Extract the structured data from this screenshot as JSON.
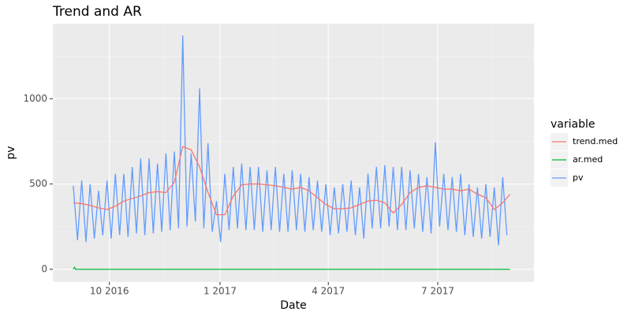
{
  "chart_data": {
    "type": "line",
    "title": "Trend and AR",
    "x_label": "Date",
    "y_label": "pv",
    "legend_title": "variable",
    "legend": "right",
    "grid": true,
    "xlim": [
      -17,
      383
    ],
    "xticks": [
      {
        "value": 30,
        "label": "10 2016"
      },
      {
        "value": 122,
        "label": "1 2017"
      },
      {
        "value": 212,
        "label": "4 2017"
      },
      {
        "value": 303,
        "label": "7 2017"
      }
    ],
    "ylim": [
      -74,
      1440
    ],
    "yticks": [
      0,
      500,
      1000
    ],
    "series": [
      {
        "name": "trend.med",
        "color": "#F8766D",
        "x": [
          0,
          7,
          14,
          21,
          28,
          35,
          42,
          49,
          56,
          63,
          70,
          77,
          84,
          91,
          98,
          105,
          112,
          119,
          126,
          133,
          140,
          147,
          154,
          161,
          168,
          175,
          182,
          189,
          196,
          203,
          210,
          217,
          224,
          231,
          238,
          245,
          252,
          259,
          266,
          273,
          280,
          287,
          294,
          301,
          308,
          315,
          322,
          329,
          336,
          343,
          350,
          357,
          363
        ],
        "values": [
          390,
          385,
          375,
          360,
          350,
          370,
          400,
          415,
          430,
          450,
          455,
          450,
          510,
          720,
          700,
          600,
          450,
          320,
          320,
          430,
          495,
          500,
          500,
          495,
          490,
          480,
          470,
          480,
          460,
          420,
          380,
          355,
          355,
          360,
          380,
          400,
          405,
          390,
          330,
          380,
          450,
          480,
          490,
          480,
          470,
          470,
          460,
          470,
          440,
          420,
          350,
          390,
          440
        ]
      },
      {
        "name": "ar.med",
        "color": "#00BA38",
        "x": [
          0,
          1,
          2,
          363
        ],
        "values": [
          0,
          12,
          0,
          0
        ]
      },
      {
        "name": "pv",
        "color": "#619CFF",
        "x": [
          0,
          3.5,
          7,
          10.5,
          14,
          17.5,
          21,
          24.5,
          28,
          31.5,
          35,
          38.5,
          42,
          45.5,
          49,
          52.5,
          56,
          59.5,
          63,
          66.5,
          70,
          73.5,
          77,
          80.5,
          84,
          87.5,
          91,
          94.5,
          98,
          101.5,
          105,
          108.5,
          112,
          115.5,
          119,
          122.5,
          126,
          129.5,
          133,
          136.5,
          140,
          143.5,
          147,
          150.5,
          154,
          157.5,
          161,
          164.5,
          168,
          171.5,
          175,
          178.5,
          182,
          185.5,
          189,
          192.5,
          196,
          199.5,
          203,
          206.5,
          210,
          213.5,
          217,
          220.5,
          224,
          227.5,
          231,
          234.5,
          238,
          241.5,
          245,
          248.5,
          252,
          255.5,
          259,
          262.5,
          266,
          269.5,
          273,
          276.5,
          280,
          283.5,
          287,
          290.5,
          294,
          297.5,
          301,
          304.5,
          308,
          311.5,
          315,
          318.5,
          322,
          325.5,
          329,
          332.5,
          336,
          339.5,
          343,
          346.5,
          350,
          353.5,
          357,
          360.5
        ],
        "values": [
          490,
          170,
          520,
          160,
          500,
          180,
          460,
          200,
          520,
          180,
          560,
          200,
          560,
          190,
          600,
          210,
          650,
          200,
          650,
          210,
          620,
          220,
          680,
          230,
          690,
          240,
          1370,
          250,
          680,
          280,
          1060,
          240,
          740,
          220,
          400,
          160,
          560,
          230,
          600,
          240,
          620,
          230,
          600,
          230,
          600,
          220,
          580,
          230,
          600,
          220,
          560,
          220,
          580,
          230,
          560,
          220,
          540,
          230,
          520,
          220,
          500,
          200,
          480,
          210,
          500,
          220,
          520,
          200,
          480,
          180,
          560,
          240,
          600,
          240,
          610,
          250,
          600,
          230,
          600,
          230,
          580,
          240,
          560,
          220,
          540,
          210,
          745,
          250,
          560,
          230,
          540,
          220,
          560,
          200,
          500,
          190,
          480,
          180,
          500,
          190,
          480,
          140,
          540,
          200
        ]
      }
    ]
  }
}
